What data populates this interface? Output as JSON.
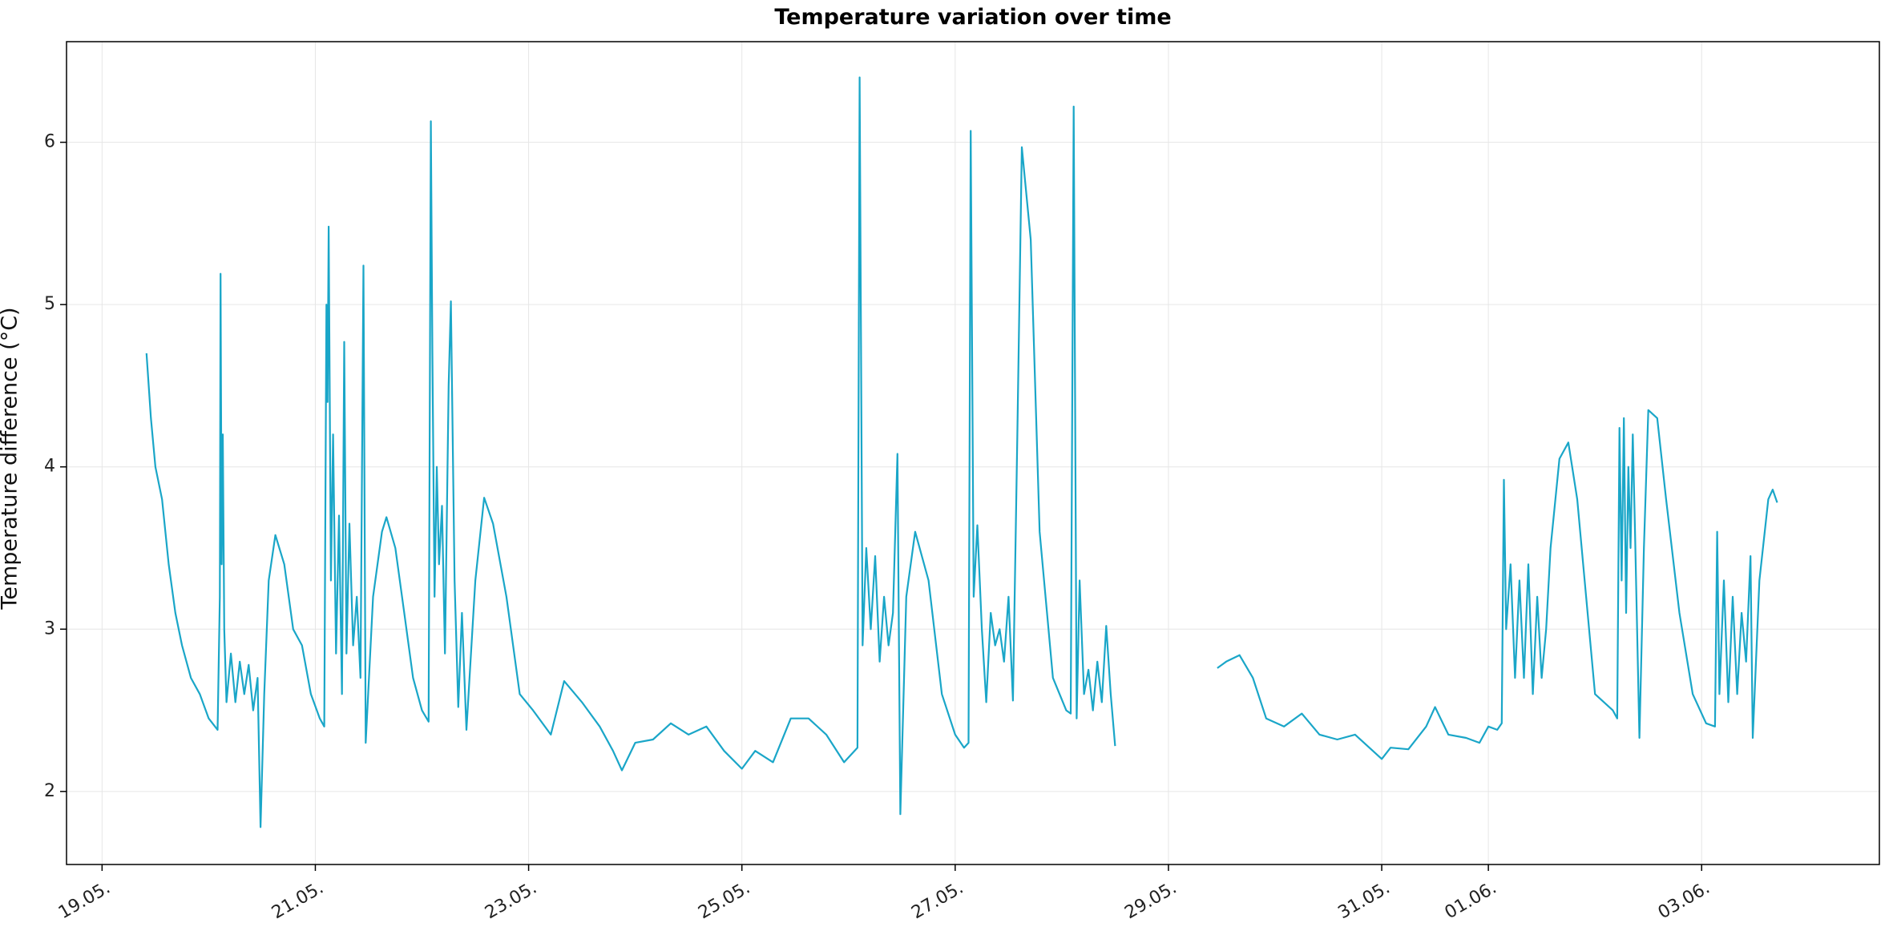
{
  "chart_data": {
    "type": "line",
    "title": "Temperature variation over time",
    "xlabel": "",
    "ylabel": "Temperature difference (°C)",
    "ylim": [
      1.55,
      6.62
    ],
    "xlim": [
      "2024-05-18T16:00",
      "2024-06-04T16:00"
    ],
    "grid": true,
    "line_color": "#1aa6c8",
    "x_ticks": [
      "19.05.",
      "21.05.",
      "23.05.",
      "25.05.",
      "27.05.",
      "29.05.",
      "31.05.",
      "01.06.",
      "03.06."
    ],
    "x_tick_dates": [
      "2024-05-19",
      "2024-05-21",
      "2024-05-23",
      "2024-05-25",
      "2024-05-27",
      "2024-05-29",
      "2024-05-31",
      "2024-06-01",
      "2024-06-03"
    ],
    "y_ticks": [
      "2",
      "3",
      "4",
      "5",
      "6"
    ],
    "y_tick_values": [
      2,
      3,
      4,
      5,
      6
    ],
    "series": [
      {
        "segments": [
          [
            [
              "2024-05-19T10:00",
              4.7
            ],
            [
              "2024-05-19T11:00",
              4.3
            ],
            [
              "2024-05-19T12:00",
              4.0
            ],
            [
              "2024-05-19T13:30",
              3.8
            ],
            [
              "2024-05-19T15:00",
              3.4
            ],
            [
              "2024-05-19T16:30",
              3.1
            ],
            [
              "2024-05-19T18:00",
              2.9
            ],
            [
              "2024-05-19T20:00",
              2.7
            ],
            [
              "2024-05-19T22:00",
              2.6
            ],
            [
              "2024-05-20T00:00",
              2.45
            ],
            [
              "2024-05-20T02:00",
              2.38
            ],
            [
              "2024-05-20T02:30",
              3.2
            ],
            [
              "2024-05-20T02:40",
              5.19
            ],
            [
              "2024-05-20T02:55",
              3.4
            ],
            [
              "2024-05-20T03:10",
              4.2
            ],
            [
              "2024-05-20T03:30",
              3.0
            ],
            [
              "2024-05-20T04:00",
              2.55
            ],
            [
              "2024-05-20T05:00",
              2.85
            ],
            [
              "2024-05-20T06:00",
              2.55
            ],
            [
              "2024-05-20T07:00",
              2.8
            ],
            [
              "2024-05-20T08:00",
              2.6
            ],
            [
              "2024-05-20T09:00",
              2.78
            ],
            [
              "2024-05-20T10:00",
              2.5
            ],
            [
              "2024-05-20T11:00",
              2.7
            ],
            [
              "2024-05-20T11:40",
              1.78
            ],
            [
              "2024-05-20T12:30",
              2.6
            ],
            [
              "2024-05-20T13:30",
              3.3
            ],
            [
              "2024-05-20T15:00",
              3.58
            ],
            [
              "2024-05-20T17:00",
              3.4
            ],
            [
              "2024-05-20T19:00",
              3.0
            ],
            [
              "2024-05-20T21:00",
              2.9
            ],
            [
              "2024-05-20T23:00",
              2.6
            ],
            [
              "2024-05-21T01:00",
              2.45
            ],
            [
              "2024-05-21T02:00",
              2.4
            ],
            [
              "2024-05-21T02:30",
              5.0
            ],
            [
              "2024-05-21T02:45",
              4.4
            ],
            [
              "2024-05-21T03:00",
              5.48
            ],
            [
              "2024-05-21T03:30",
              3.3
            ],
            [
              "2024-05-21T04:00",
              4.2
            ],
            [
              "2024-05-21T04:40",
              2.85
            ],
            [
              "2024-05-21T05:20",
              3.7
            ],
            [
              "2024-05-21T06:00",
              2.6
            ],
            [
              "2024-05-21T06:30",
              4.77
            ],
            [
              "2024-05-21T07:00",
              2.85
            ],
            [
              "2024-05-21T07:40",
              3.65
            ],
            [
              "2024-05-21T08:30",
              2.9
            ],
            [
              "2024-05-21T09:20",
              3.2
            ],
            [
              "2024-05-21T10:10",
              2.7
            ],
            [
              "2024-05-21T10:50",
              5.24
            ],
            [
              "2024-05-21T11:20",
              2.3
            ],
            [
              "2024-05-21T13:00",
              3.2
            ],
            [
              "2024-05-21T15:00",
              3.6
            ],
            [
              "2024-05-21T16:00",
              3.69
            ],
            [
              "2024-05-21T18:00",
              3.5
            ],
            [
              "2024-05-21T20:00",
              3.1
            ],
            [
              "2024-05-21T22:00",
              2.7
            ],
            [
              "2024-05-22T00:00",
              2.5
            ],
            [
              "2024-05-22T01:30",
              2.43
            ],
            [
              "2024-05-22T02:00",
              6.13
            ],
            [
              "2024-05-22T02:20",
              4.7
            ],
            [
              "2024-05-22T02:50",
              3.2
            ],
            [
              "2024-05-22T03:20",
              4.0
            ],
            [
              "2024-05-22T03:50",
              3.4
            ],
            [
              "2024-05-22T04:30",
              3.76
            ],
            [
              "2024-05-22T05:10",
              2.85
            ],
            [
              "2024-05-22T06:00",
              4.5
            ],
            [
              "2024-05-22T06:30",
              5.02
            ],
            [
              "2024-05-22T07:20",
              3.3
            ],
            [
              "2024-05-22T08:10",
              2.52
            ],
            [
              "2024-05-22T09:00",
              3.1
            ],
            [
              "2024-05-22T10:00",
              2.38
            ],
            [
              "2024-05-22T12:00",
              3.3
            ],
            [
              "2024-05-22T14:00",
              3.81
            ],
            [
              "2024-05-22T16:00",
              3.65
            ],
            [
              "2024-05-22T19:00",
              3.2
            ],
            [
              "2024-05-22T22:00",
              2.6
            ],
            [
              "2024-05-23T01:00",
              2.5
            ],
            [
              "2024-05-23T05:00",
              2.35
            ],
            [
              "2024-05-23T08:00",
              2.68
            ],
            [
              "2024-05-23T12:00",
              2.55
            ],
            [
              "2024-05-23T16:00",
              2.4
            ],
            [
              "2024-05-23T19:00",
              2.25
            ],
            [
              "2024-05-23T21:00",
              2.13
            ],
            [
              "2024-05-24T00:00",
              2.3
            ],
            [
              "2024-05-24T04:00",
              2.32
            ],
            [
              "2024-05-24T08:00",
              2.42
            ],
            [
              "2024-05-24T12:00",
              2.35
            ],
            [
              "2024-05-24T16:00",
              2.4
            ],
            [
              "2024-05-24T20:00",
              2.25
            ],
            [
              "2024-05-25T00:00",
              2.14
            ],
            [
              "2024-05-25T03:00",
              2.25
            ],
            [
              "2024-05-25T07:00",
              2.18
            ],
            [
              "2024-05-25T11:00",
              2.45
            ],
            [
              "2024-05-25T15:00",
              2.45
            ],
            [
              "2024-05-25T19:00",
              2.35
            ],
            [
              "2024-05-25T23:00",
              2.18
            ],
            [
              "2024-05-26T02:00",
              2.27
            ],
            [
              "2024-05-26T02:30",
              6.4
            ],
            [
              "2024-05-26T03:10",
              2.9
            ],
            [
              "2024-05-26T04:00",
              3.5
            ],
            [
              "2024-05-26T05:00",
              3.0
            ],
            [
              "2024-05-26T06:00",
              3.45
            ],
            [
              "2024-05-26T07:00",
              2.8
            ],
            [
              "2024-05-26T08:00",
              3.2
            ],
            [
              "2024-05-26T09:00",
              2.9
            ],
            [
              "2024-05-26T10:00",
              3.1
            ],
            [
              "2024-05-26T11:00",
              4.08
            ],
            [
              "2024-05-26T11:40",
              1.86
            ],
            [
              "2024-05-26T13:00",
              3.2
            ],
            [
              "2024-05-26T15:00",
              3.6
            ],
            [
              "2024-05-26T18:00",
              3.3
            ],
            [
              "2024-05-26T21:00",
              2.6
            ],
            [
              "2024-05-27T00:00",
              2.35
            ],
            [
              "2024-05-27T02:00",
              2.27
            ],
            [
              "2024-05-27T03:00",
              2.3
            ],
            [
              "2024-05-27T03:30",
              6.07
            ],
            [
              "2024-05-27T04:10",
              3.2
            ],
            [
              "2024-05-27T05:00",
              3.64
            ],
            [
              "2024-05-27T06:00",
              3.0
            ],
            [
              "2024-05-27T07:00",
              2.55
            ],
            [
              "2024-05-27T08:00",
              3.1
            ],
            [
              "2024-05-27T09:00",
              2.9
            ],
            [
              "2024-05-27T10:00",
              3.0
            ],
            [
              "2024-05-27T11:00",
              2.8
            ],
            [
              "2024-05-27T12:00",
              3.2
            ],
            [
              "2024-05-27T13:00",
              2.56
            ],
            [
              "2024-05-27T14:00",
              4.2
            ],
            [
              "2024-05-27T15:00",
              5.97
            ],
            [
              "2024-05-27T17:00",
              5.4
            ],
            [
              "2024-05-27T19:00",
              3.6
            ],
            [
              "2024-05-27T22:00",
              2.7
            ],
            [
              "2024-05-28T01:00",
              2.5
            ],
            [
              "2024-05-28T02:00",
              2.48
            ],
            [
              "2024-05-28T02:40",
              6.22
            ],
            [
              "2024-05-28T03:20",
              2.45
            ],
            [
              "2024-05-28T04:00",
              3.3
            ],
            [
              "2024-05-28T05:00",
              2.6
            ],
            [
              "2024-05-28T06:00",
              2.75
            ],
            [
              "2024-05-28T07:00",
              2.5
            ],
            [
              "2024-05-28T08:00",
              2.8
            ],
            [
              "2024-05-28T09:00",
              2.55
            ],
            [
              "2024-05-28T10:00",
              3.02
            ],
            [
              "2024-05-28T11:00",
              2.6
            ],
            [
              "2024-05-28T12:00",
              2.28
            ]
          ],
          [
            [
              "2024-05-29T11:00",
              2.76
            ],
            [
              "2024-05-29T13:00",
              2.8
            ],
            [
              "2024-05-29T16:00",
              2.84
            ],
            [
              "2024-05-29T19:00",
              2.7
            ],
            [
              "2024-05-29T22:00",
              2.45
            ],
            [
              "2024-05-30T02:00",
              2.4
            ],
            [
              "2024-05-30T06:00",
              2.48
            ],
            [
              "2024-05-30T10:00",
              2.35
            ],
            [
              "2024-05-30T14:00",
              2.32
            ],
            [
              "2024-05-30T18:00",
              2.35
            ],
            [
              "2024-05-30T22:00",
              2.25
            ],
            [
              "2024-05-31T00:00",
              2.2
            ],
            [
              "2024-05-31T02:00",
              2.27
            ],
            [
              "2024-05-31T06:00",
              2.26
            ],
            [
              "2024-05-31T10:00",
              2.4
            ],
            [
              "2024-05-31T12:00",
              2.52
            ],
            [
              "2024-05-31T15:00",
              2.35
            ],
            [
              "2024-05-31T19:00",
              2.33
            ],
            [
              "2024-05-31T22:00",
              2.3
            ],
            [
              "2024-06-01T00:00",
              2.4
            ],
            [
              "2024-06-01T02:00",
              2.38
            ],
            [
              "2024-06-01T03:00",
              2.42
            ],
            [
              "2024-06-01T03:30",
              3.92
            ],
            [
              "2024-06-01T04:00",
              3.0
            ],
            [
              "2024-06-01T05:00",
              3.4
            ],
            [
              "2024-06-01T06:00",
              2.7
            ],
            [
              "2024-06-01T07:00",
              3.3
            ],
            [
              "2024-06-01T08:00",
              2.7
            ],
            [
              "2024-06-01T09:00",
              3.4
            ],
            [
              "2024-06-01T10:00",
              2.6
            ],
            [
              "2024-06-01T11:00",
              3.2
            ],
            [
              "2024-06-01T12:00",
              2.7
            ],
            [
              "2024-06-01T13:00",
              3.0
            ],
            [
              "2024-06-01T14:00",
              3.5
            ],
            [
              "2024-06-01T16:00",
              4.05
            ],
            [
              "2024-06-01T18:00",
              4.15
            ],
            [
              "2024-06-01T20:00",
              3.8
            ],
            [
              "2024-06-01T22:00",
              3.2
            ],
            [
              "2024-06-02T00:00",
              2.6
            ],
            [
              "2024-06-02T02:00",
              2.55
            ],
            [
              "2024-06-02T04:00",
              2.5
            ],
            [
              "2024-06-02T05:00",
              2.45
            ],
            [
              "2024-06-02T05:30",
              4.24
            ],
            [
              "2024-06-02T06:00",
              3.3
            ],
            [
              "2024-06-02T06:30",
              4.3
            ],
            [
              "2024-06-02T07:00",
              3.1
            ],
            [
              "2024-06-02T07:30",
              4.0
            ],
            [
              "2024-06-02T08:00",
              3.5
            ],
            [
              "2024-06-02T08:30",
              4.2
            ],
            [
              "2024-06-02T09:00",
              3.6
            ],
            [
              "2024-06-02T10:00",
              2.33
            ],
            [
              "2024-06-02T11:00",
              3.5
            ],
            [
              "2024-06-02T12:00",
              4.35
            ],
            [
              "2024-06-02T14:00",
              4.3
            ],
            [
              "2024-06-02T16:00",
              3.8
            ],
            [
              "2024-06-02T19:00",
              3.1
            ],
            [
              "2024-06-02T22:00",
              2.6
            ],
            [
              "2024-06-03T01:00",
              2.42
            ],
            [
              "2024-06-03T03:00",
              2.4
            ],
            [
              "2024-06-03T03:30",
              3.6
            ],
            [
              "2024-06-03T04:00",
              2.6
            ],
            [
              "2024-06-03T05:00",
              3.3
            ],
            [
              "2024-06-03T06:00",
              2.55
            ],
            [
              "2024-06-03T07:00",
              3.2
            ],
            [
              "2024-06-03T08:00",
              2.6
            ],
            [
              "2024-06-03T09:00",
              3.1
            ],
            [
              "2024-06-03T10:00",
              2.8
            ],
            [
              "2024-06-03T11:00",
              3.45
            ],
            [
              "2024-06-03T11:30",
              2.33
            ],
            [
              "2024-06-03T13:00",
              3.3
            ],
            [
              "2024-06-03T15:00",
              3.8
            ],
            [
              "2024-06-03T16:00",
              3.86
            ],
            [
              "2024-06-03T17:00",
              3.78
            ]
          ]
        ]
      }
    ]
  }
}
